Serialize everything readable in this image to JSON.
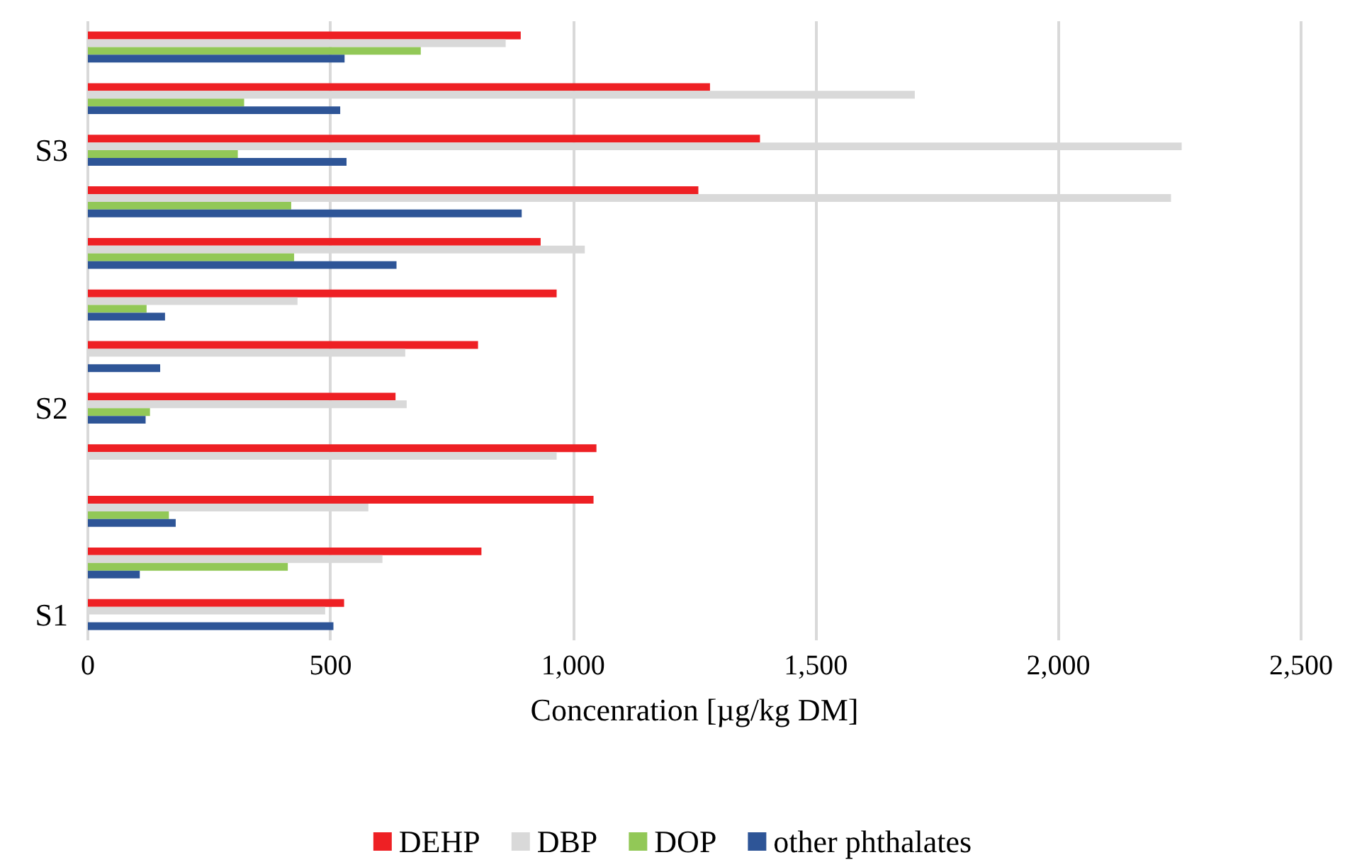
{
  "chart_data": {
    "type": "bar",
    "orientation": "horizontal",
    "xlabel": "Concenration [µg/kg DM]",
    "categories": [
      null,
      null,
      "S3",
      null,
      null,
      null,
      null,
      "S2",
      null,
      null,
      null,
      "S1"
    ],
    "series": [
      {
        "name": "DEHP",
        "color": "#ee2024",
        "values": [
          892,
          1282,
          1385,
          1258,
          933,
          966,
          804,
          634,
          1048,
          1042,
          811,
          528
        ]
      },
      {
        "name": "DBP",
        "color": "#d9d9d9",
        "values": [
          861,
          1704,
          2254,
          2232,
          1024,
          432,
          654,
          657,
          966,
          578,
          607,
          489
        ]
      },
      {
        "name": "DOP",
        "color": "#92c857",
        "values": [
          686,
          322,
          309,
          419,
          425,
          121,
          null,
          128,
          null,
          167,
          412,
          null
        ]
      },
      {
        "name": "other phthalates",
        "color": "#2e5597",
        "values": [
          529,
          520,
          533,
          894,
          636,
          159,
          149,
          119,
          null,
          181,
          107,
          506
        ]
      }
    ],
    "xlim": [
      0,
      2500
    ],
    "xticks": [
      0,
      500,
      {
        "value": 1000,
        "label": "1,000"
      },
      {
        "value": 1500,
        "label": "1,500"
      },
      {
        "value": 2000,
        "label": "2,000"
      },
      {
        "value": 2500,
        "label": "2,500"
      }
    ],
    "grid": "x",
    "legend": "bottom"
  }
}
